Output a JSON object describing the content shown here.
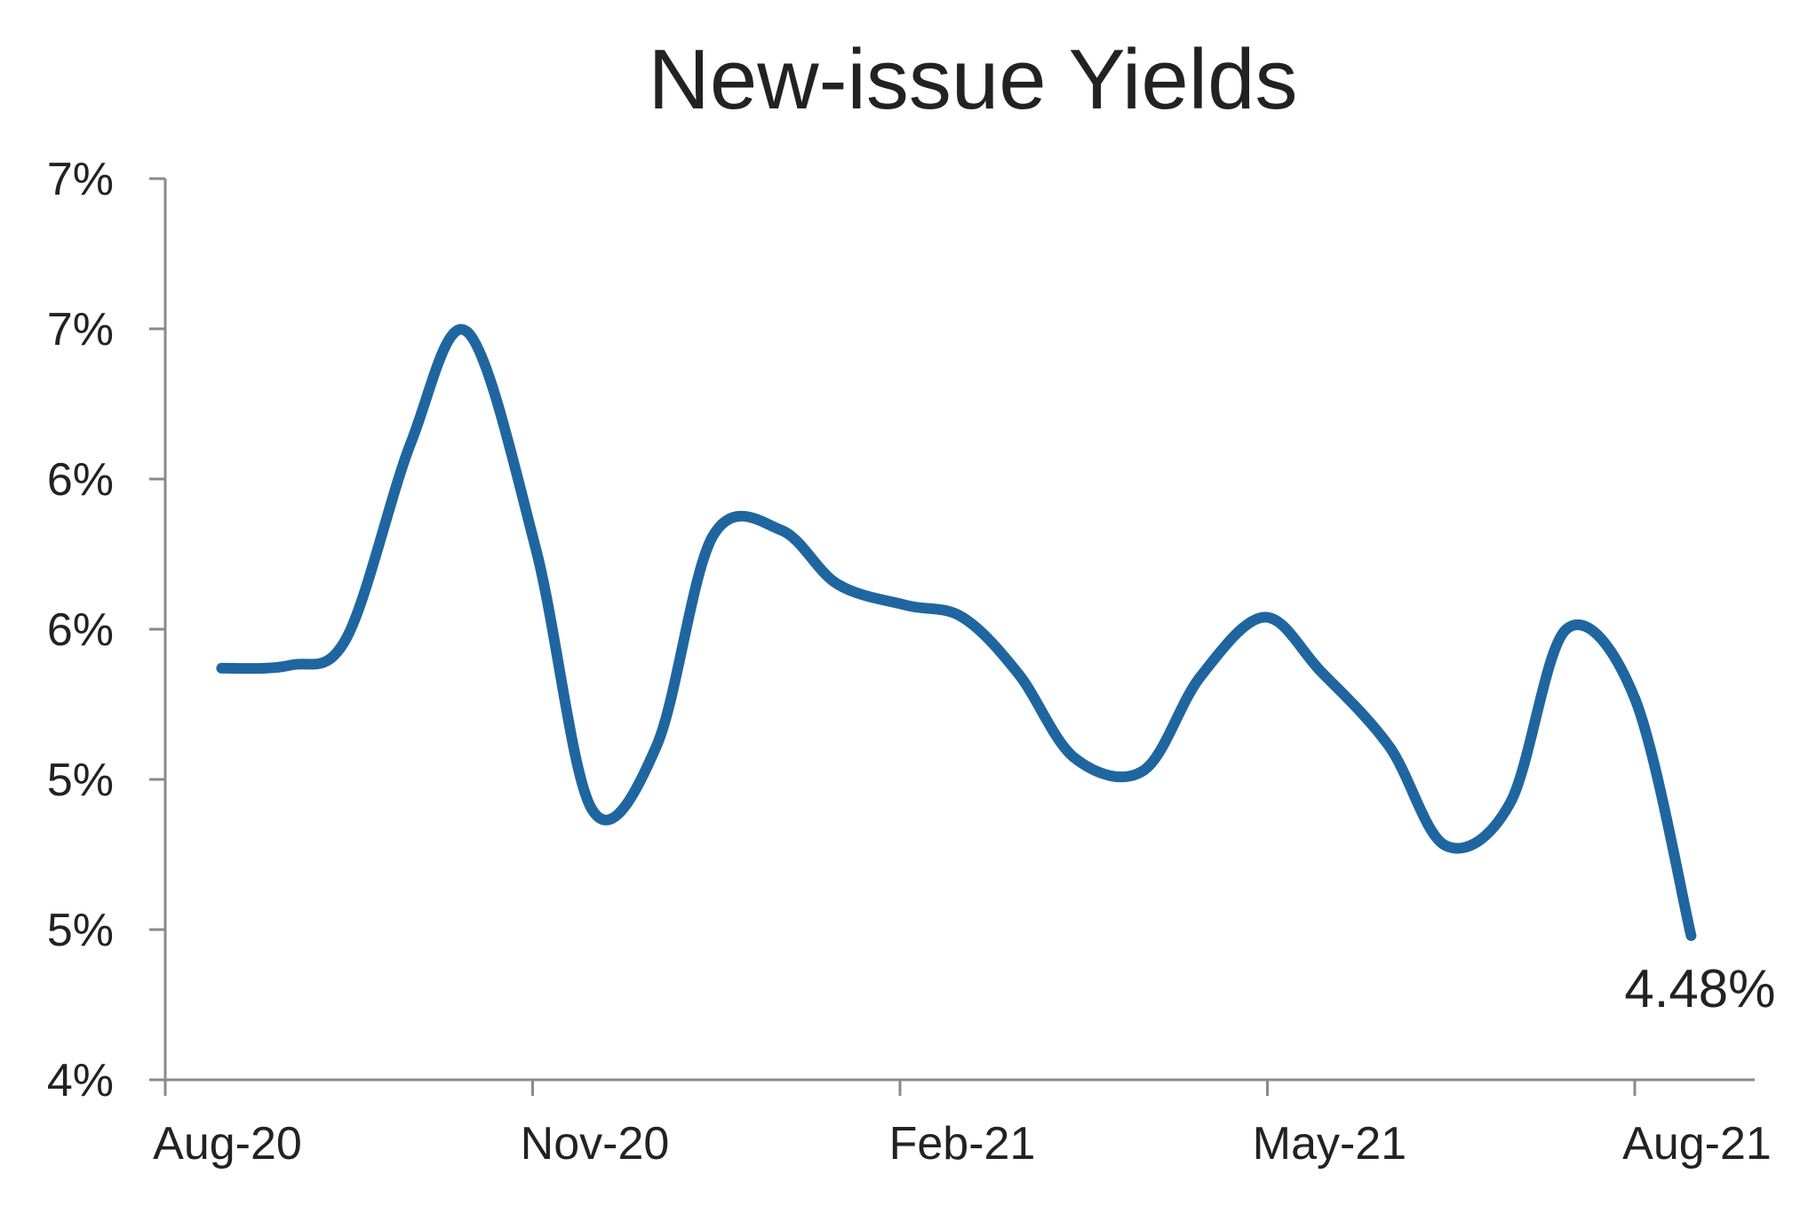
{
  "chart_data": {
    "type": "line",
    "title": "New-issue Yields",
    "xlabel": "",
    "ylabel": "",
    "grid": false,
    "legend": "none",
    "colors": {
      "series": "#1f66a0",
      "axis": "#8a8a8a",
      "text": "#222222"
    },
    "x_ticks": [
      "Aug-20",
      "Nov-20",
      "Feb-21",
      "May-21",
      "Aug-21"
    ],
    "x_range": [
      "2020-08-01",
      "2021-08-01"
    ],
    "y_ticks": [
      "4%",
      "5%",
      "5%",
      "6%",
      "6%",
      "7%",
      "7%"
    ],
    "y_tick_values": [
      4.0,
      4.5,
      5.0,
      5.5,
      6.0,
      6.5,
      7.0
    ],
    "ylim": [
      4.0,
      7.0
    ],
    "series": [
      {
        "name": "",
        "x": [
          "2020-08-15",
          "2020-09-01",
          "2020-09-15",
          "2020-10-01",
          "2020-10-15",
          "2020-11-01",
          "2020-11-15",
          "2020-12-01",
          "2020-12-15",
          "2021-01-01",
          "2021-01-15",
          "2021-02-01",
          "2021-02-15",
          "2021-03-01",
          "2021-03-15",
          "2021-04-01",
          "2021-04-15",
          "2021-05-01",
          "2021-05-15",
          "2021-06-01",
          "2021-06-15",
          "2021-07-01",
          "2021-07-15",
          "2021-08-01",
          "2021-08-15"
        ],
        "values": [
          5.37,
          5.38,
          5.47,
          6.12,
          6.49,
          5.77,
          4.9,
          5.11,
          5.81,
          5.83,
          5.65,
          5.58,
          5.54,
          5.35,
          5.07,
          5.03,
          5.34,
          5.54,
          5.36,
          5.11,
          4.78,
          4.92,
          5.5,
          5.27,
          4.48
        ]
      }
    ],
    "annotations": [
      {
        "text": "4.48%",
        "x": "2021-08-15",
        "y": 4.48
      }
    ]
  }
}
